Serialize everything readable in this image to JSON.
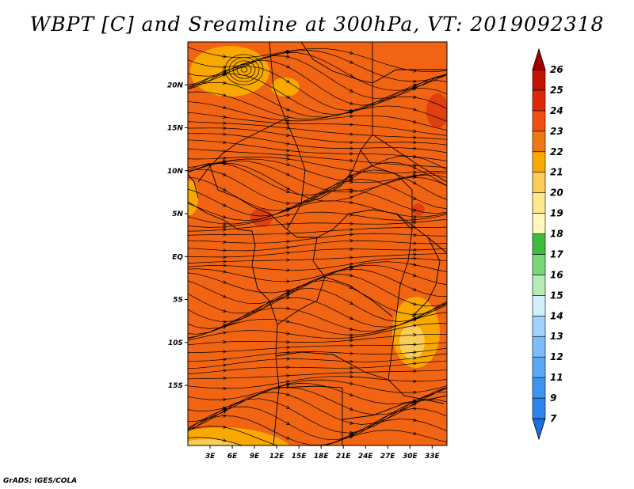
{
  "title": "WBPT [C] and Sreamline at 300hPa, VT: 2019092318",
  "credit": "GrADS: IGES/COLA",
  "map": {
    "lon_range": [
      0,
      35
    ],
    "lat_range": [
      -22,
      25
    ],
    "lon_ticks": [
      {
        "value": 3,
        "label": "3E"
      },
      {
        "value": 6,
        "label": "6E"
      },
      {
        "value": 9,
        "label": "9E"
      },
      {
        "value": 12,
        "label": "12E"
      },
      {
        "value": 15,
        "label": "15E"
      },
      {
        "value": 18,
        "label": "18E"
      },
      {
        "value": 21,
        "label": "21E"
      },
      {
        "value": 24,
        "label": "24E"
      },
      {
        "value": 27,
        "label": "27E"
      },
      {
        "value": 30,
        "label": "30E"
      },
      {
        "value": 33,
        "label": "33E"
      }
    ],
    "lat_ticks": [
      {
        "value": 20,
        "label": "20N"
      },
      {
        "value": 15,
        "label": "15N"
      },
      {
        "value": 10,
        "label": "10N"
      },
      {
        "value": 5,
        "label": "5N"
      },
      {
        "value": 0,
        "label": "EQ"
      },
      {
        "value": -5,
        "label": "5S"
      },
      {
        "value": -10,
        "label": "10S"
      },
      {
        "value": -15,
        "label": "15S"
      }
    ],
    "background_color": "#f06414"
  },
  "colorbar": {
    "levels": [
      "7",
      "9",
      "11",
      "12",
      "13",
      "14",
      "15",
      "16",
      "17",
      "18",
      "19",
      "20",
      "21",
      "22",
      "23",
      "24",
      "25",
      "26"
    ],
    "colors": [
      "#1e6ee0",
      "#2a86ec",
      "#3c96f0",
      "#5aa8f4",
      "#7cbcf8",
      "#a0d2fa",
      "#d2f0fa",
      "#b4ecb4",
      "#78d878",
      "#3cbe3c",
      "#fff8b8",
      "#fde88c",
      "#fbcc58",
      "#f8a800",
      "#f07814",
      "#f05010",
      "#e02808",
      "#c41000",
      "#a00000"
    ]
  }
}
